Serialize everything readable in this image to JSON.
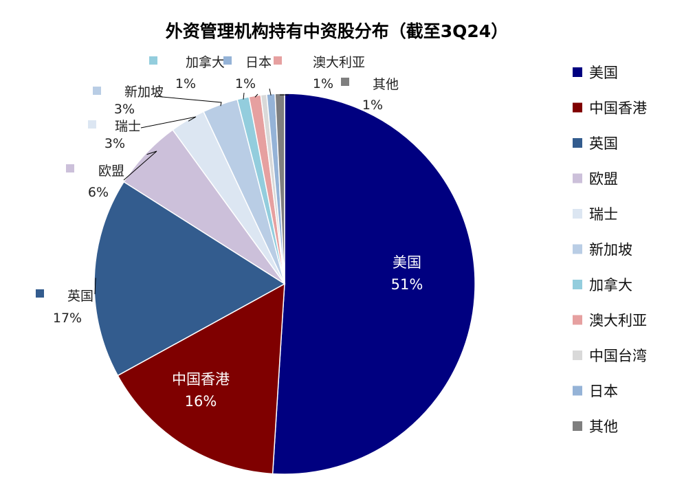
{
  "chart_data": {
    "type": "pie",
    "title": "外资管理机构持有中资股分布（截至3Q24）",
    "slices": [
      {
        "label": "美国",
        "value": 51,
        "display": "51%",
        "color": "#000080"
      },
      {
        "label": "中国香港",
        "value": 16,
        "display": "16%",
        "color": "#7F0000"
      },
      {
        "label": "英国",
        "value": 17,
        "display": "17%",
        "color": "#335C8E"
      },
      {
        "label": "欧盟",
        "value": 6,
        "display": "6%",
        "color": "#CCC0DA"
      },
      {
        "label": "瑞士",
        "value": 3,
        "display": "3%",
        "color": "#DCE6F2"
      },
      {
        "label": "新加坡",
        "value": 3,
        "display": "3%",
        "color": "#B9CDE5"
      },
      {
        "label": "加拿大",
        "value": 1,
        "display": "1%",
        "color": "#93CDDD"
      },
      {
        "label": "澳大利亚",
        "value": 1,
        "display": "1%",
        "color": "#E6A0A0"
      },
      {
        "label": "中国台湾",
        "value": 0.5,
        "display": "",
        "color": "#D9D9D9"
      },
      {
        "label": "日本",
        "value": 0.7,
        "display": "1%",
        "color": "#95B3D7"
      },
      {
        "label": "其他",
        "value": 0.8,
        "display": "1%",
        "color": "#7F7F7F"
      }
    ],
    "legend_position": "right"
  }
}
